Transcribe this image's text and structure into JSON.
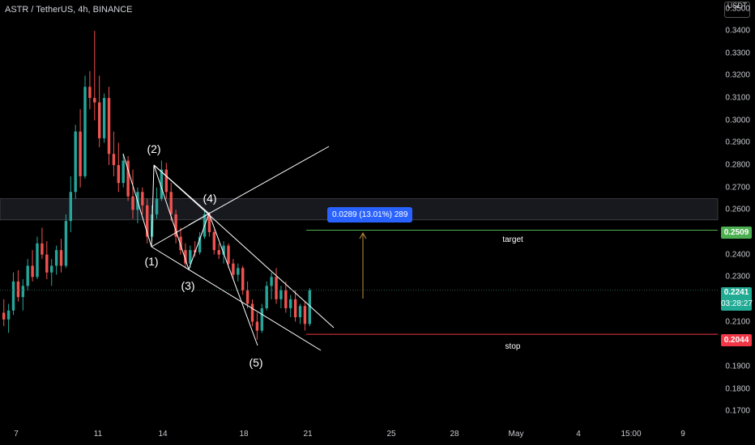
{
  "header": {
    "title": "ASTR / TetherUS, 4h, BINANCE"
  },
  "axis": {
    "currency": "USDT",
    "price_ticks": [
      "0.3500",
      "0.3400",
      "0.3300",
      "0.3200",
      "0.3100",
      "0.3000",
      "0.2900",
      "0.2800",
      "0.2700",
      "0.2600",
      "0.2500",
      "0.2400",
      "0.2300",
      "0.2200",
      "0.2100",
      "0.2000",
      "0.1900",
      "0.1800",
      "0.1700"
    ],
    "time_ticks": [
      "7",
      "11",
      "14",
      "18",
      "21",
      "25",
      "28",
      "May",
      "4",
      "15:00",
      "9"
    ]
  },
  "price_tags": {
    "target_value": "0.2509",
    "current_value": "0.2241",
    "countdown": "03:28:27",
    "stop_value": "0.2044"
  },
  "annotations": {
    "measure": "0.0289 (13.01%) 289",
    "target_label": "target",
    "stop_label": "stop",
    "waves": [
      "(1)",
      "(2)",
      "(3)",
      "(4)",
      "(5)"
    ]
  },
  "colors": {
    "background": "#000000",
    "up_candle": "#26a69a",
    "down_candle": "#ef5350",
    "target_line": "#4caf50",
    "stop_line": "#f23645",
    "measure_box": "#2962ff",
    "current_tag": "#22ab94",
    "drawing": "#ffffff"
  },
  "chart_data": {
    "type": "candlestick",
    "title": "ASTR / TetherUS, 4h, BINANCE",
    "ylim": [
      0.165,
      0.352
    ],
    "x_ticks": [
      "7",
      "11",
      "14",
      "18",
      "21",
      "25",
      "28",
      "May",
      "4",
      "15:00",
      "9"
    ],
    "series": [
      {
        "values": [
          [
            0.214,
            0.22,
            0.208,
            0.211
          ],
          [
            0.211,
            0.218,
            0.205,
            0.215
          ],
          [
            0.215,
            0.232,
            0.213,
            0.228
          ],
          [
            0.228,
            0.233,
            0.219,
            0.221
          ],
          [
            0.221,
            0.229,
            0.215,
            0.226
          ],
          [
            0.226,
            0.238,
            0.224,
            0.235
          ],
          [
            0.235,
            0.242,
            0.228,
            0.23
          ],
          [
            0.23,
            0.248,
            0.229,
            0.245
          ],
          [
            0.245,
            0.252,
            0.238,
            0.24
          ],
          [
            0.24,
            0.246,
            0.229,
            0.232
          ],
          [
            0.232,
            0.238,
            0.226,
            0.235
          ],
          [
            0.235,
            0.244,
            0.231,
            0.242
          ],
          [
            0.242,
            0.247,
            0.232,
            0.235
          ],
          [
            0.235,
            0.258,
            0.234,
            0.255
          ],
          [
            0.255,
            0.275,
            0.25,
            0.268
          ],
          [
            0.268,
            0.298,
            0.265,
            0.295
          ],
          [
            0.295,
            0.305,
            0.27,
            0.275
          ],
          [
            0.275,
            0.32,
            0.274,
            0.315
          ],
          [
            0.315,
            0.322,
            0.305,
            0.31
          ],
          [
            0.31,
            0.34,
            0.3,
            0.308
          ],
          [
            0.308,
            0.32,
            0.288,
            0.292
          ],
          [
            0.292,
            0.312,
            0.29,
            0.31
          ],
          [
            0.31,
            0.315,
            0.28,
            0.285
          ],
          [
            0.285,
            0.295,
            0.275,
            0.28
          ],
          [
            0.28,
            0.29,
            0.268,
            0.272
          ],
          [
            0.272,
            0.285,
            0.27,
            0.282
          ],
          [
            0.282,
            0.284,
            0.264,
            0.266
          ],
          [
            0.266,
            0.278,
            0.256,
            0.26
          ],
          [
            0.26,
            0.27,
            0.254,
            0.268
          ],
          [
            0.268,
            0.27,
            0.258,
            0.262
          ],
          [
            0.262,
            0.265,
            0.245,
            0.248
          ],
          [
            0.248,
            0.262,
            0.246,
            0.258
          ],
          [
            0.258,
            0.27,
            0.256,
            0.265
          ],
          [
            0.265,
            0.282,
            0.264,
            0.278
          ],
          [
            0.278,
            0.281,
            0.265,
            0.268
          ],
          [
            0.268,
            0.272,
            0.255,
            0.258
          ],
          [
            0.258,
            0.26,
            0.245,
            0.248
          ],
          [
            0.248,
            0.252,
            0.24,
            0.242
          ],
          [
            0.242,
            0.245,
            0.234,
            0.236
          ],
          [
            0.236,
            0.244,
            0.234,
            0.242
          ],
          [
            0.242,
            0.246,
            0.239,
            0.241
          ],
          [
            0.241,
            0.25,
            0.24,
            0.248
          ],
          [
            0.248,
            0.26,
            0.247,
            0.258
          ],
          [
            0.258,
            0.259,
            0.248,
            0.25
          ],
          [
            0.25,
            0.251,
            0.24,
            0.242
          ],
          [
            0.242,
            0.245,
            0.238,
            0.24
          ],
          [
            0.24,
            0.246,
            0.236,
            0.244
          ],
          [
            0.244,
            0.245,
            0.234,
            0.236
          ],
          [
            0.236,
            0.238,
            0.229,
            0.231
          ],
          [
            0.231,
            0.236,
            0.228,
            0.234
          ],
          [
            0.234,
            0.235,
            0.222,
            0.224
          ],
          [
            0.224,
            0.228,
            0.216,
            0.218
          ],
          [
            0.218,
            0.22,
            0.208,
            0.21
          ],
          [
            0.21,
            0.214,
            0.202,
            0.206
          ],
          [
            0.206,
            0.218,
            0.205,
            0.216
          ],
          [
            0.216,
            0.228,
            0.215,
            0.226
          ],
          [
            0.226,
            0.232,
            0.22,
            0.23
          ],
          [
            0.23,
            0.234,
            0.218,
            0.22
          ],
          [
            0.22,
            0.226,
            0.216,
            0.224
          ],
          [
            0.224,
            0.228,
            0.214,
            0.216
          ],
          [
            0.216,
            0.222,
            0.212,
            0.22
          ],
          [
            0.22,
            0.224,
            0.21,
            0.212
          ],
          [
            0.212,
            0.218,
            0.209,
            0.217
          ],
          [
            0.217,
            0.219,
            0.206,
            0.209
          ],
          [
            0.209,
            0.225,
            0.208,
            0.2241
          ]
        ]
      }
    ],
    "levels": [
      {
        "name": "target",
        "value": 0.2509
      },
      {
        "name": "stop",
        "value": 0.2044
      },
      {
        "name": "last",
        "value": 0.2241
      }
    ],
    "zone": [
      0.2555,
      0.265
    ],
    "measure": {
      "from": 0.222,
      "to": 0.2509,
      "text": "0.0289 (13.01%) 289"
    }
  }
}
